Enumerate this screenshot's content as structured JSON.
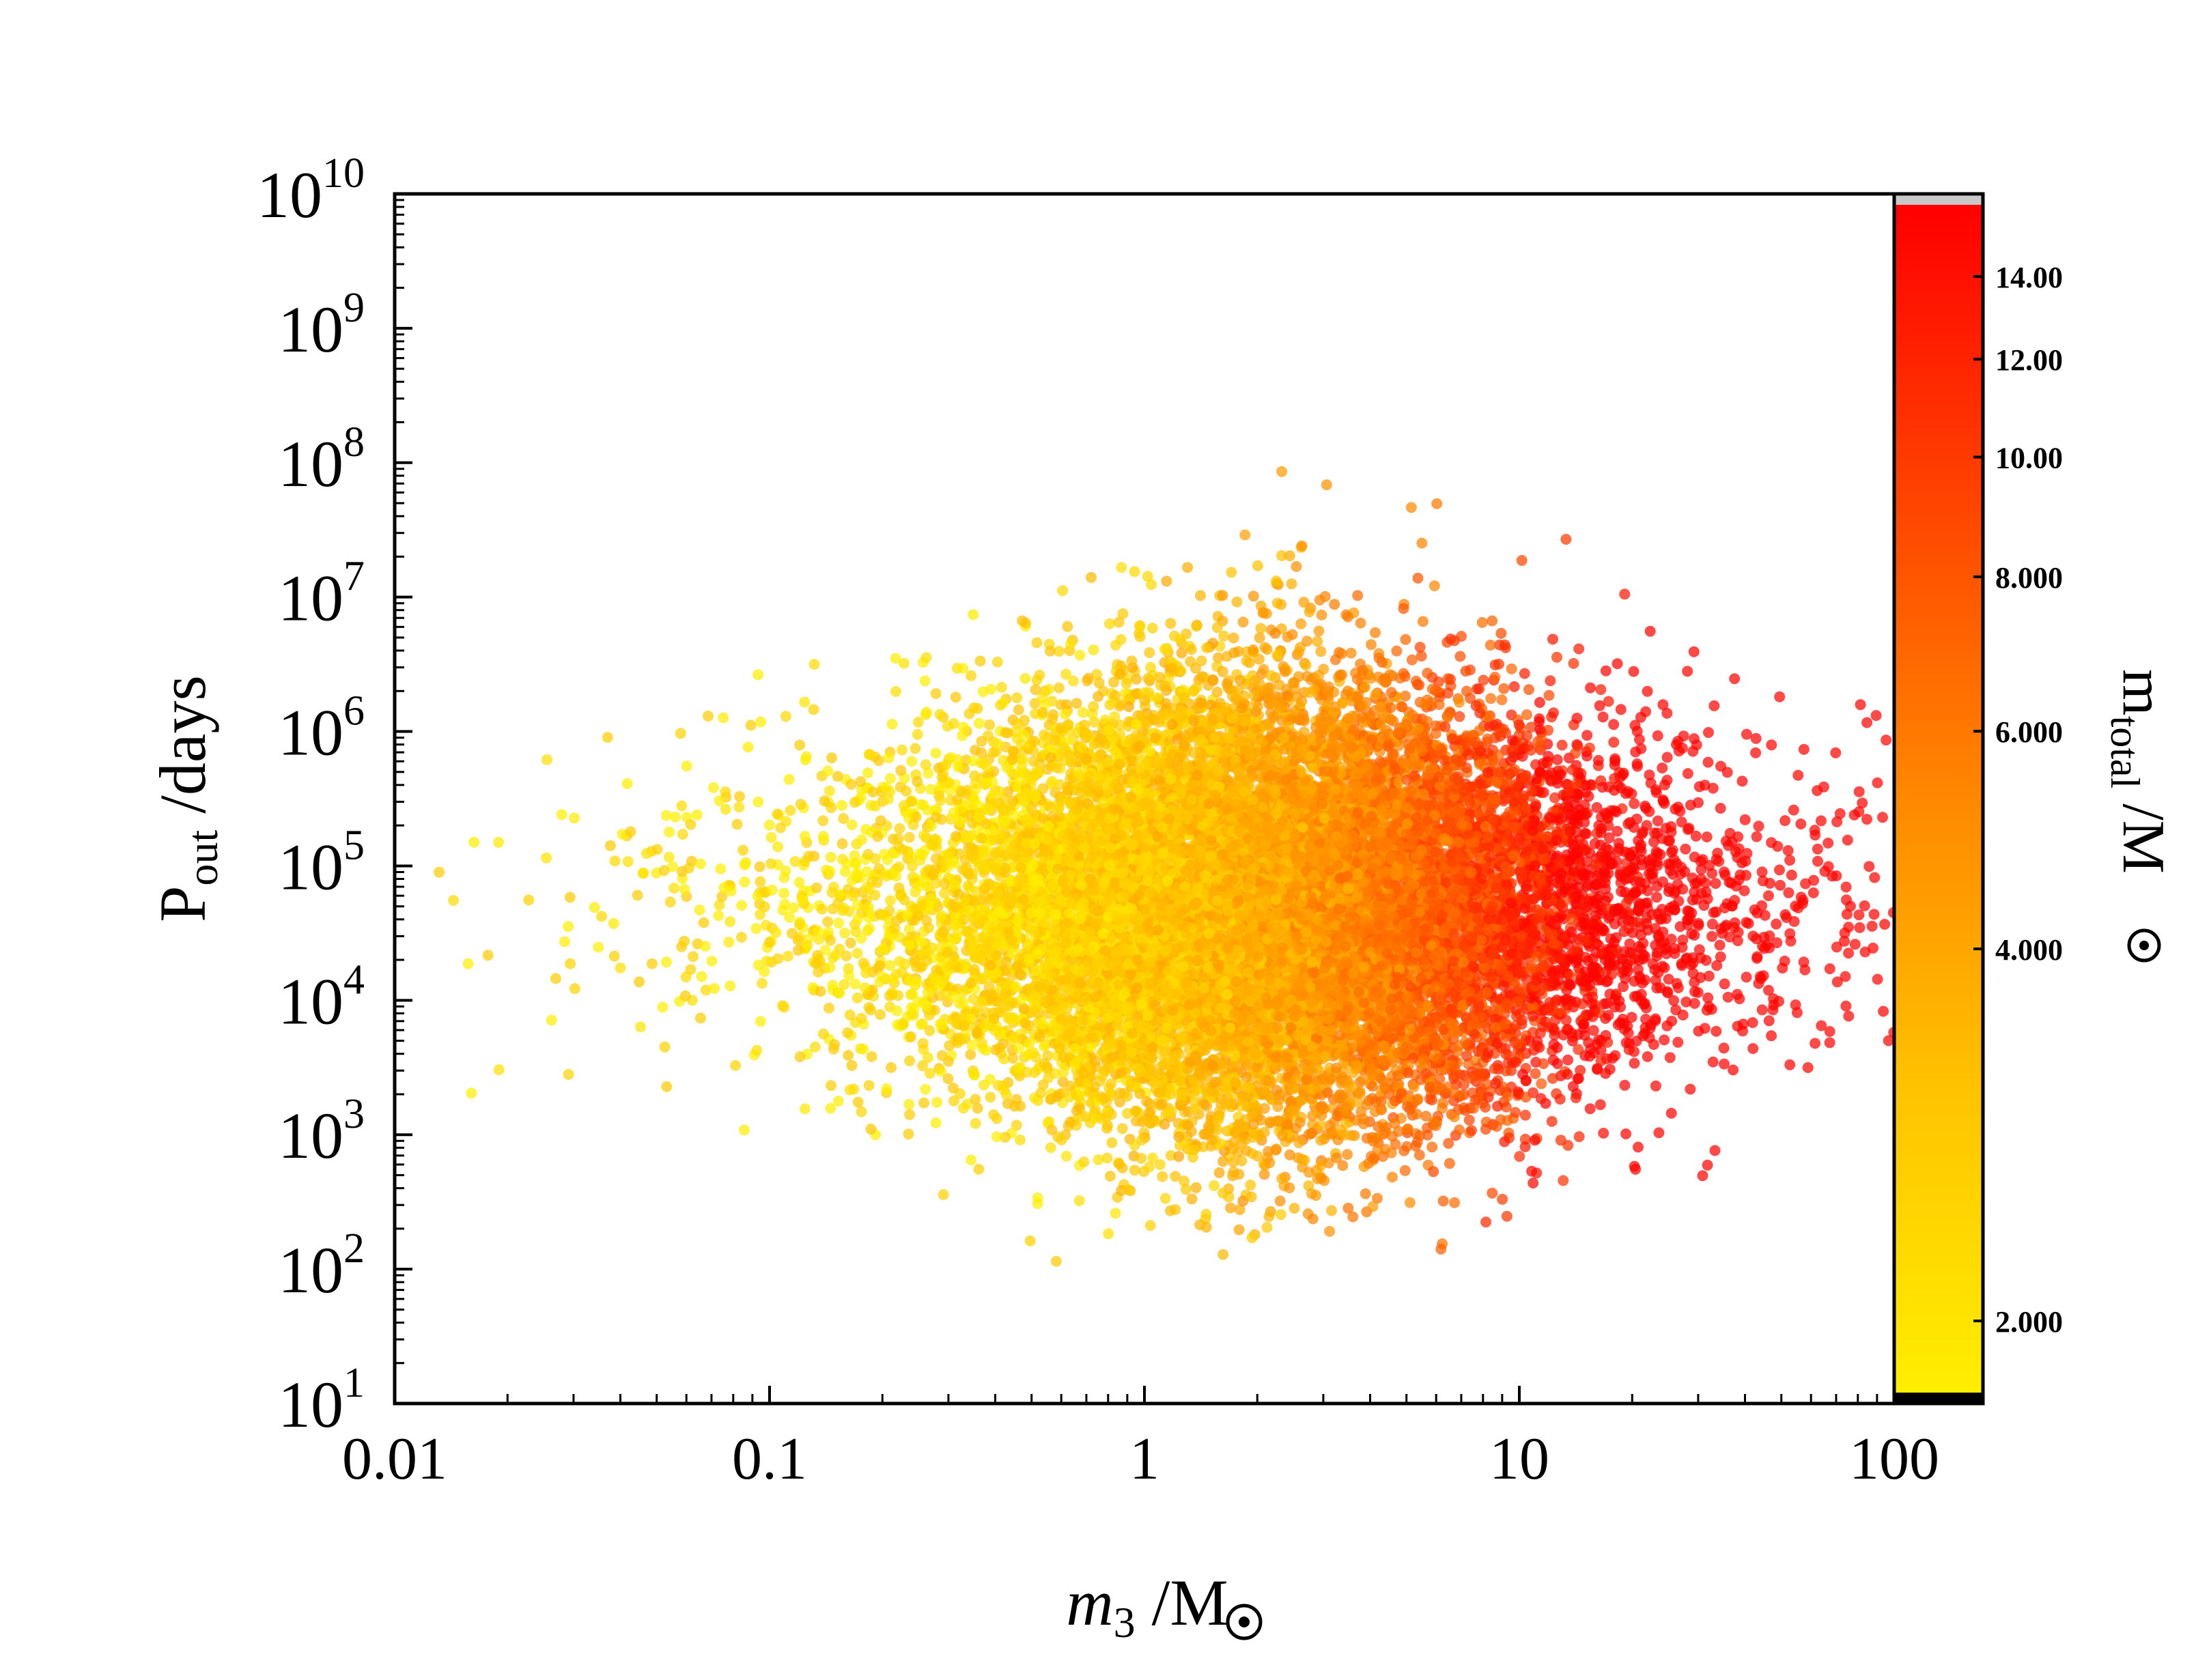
{
  "chart_data": {
    "type": "scatter",
    "title": "",
    "x_axis": {
      "label": "m",
      "label_sub": "3",
      "label_unit": " /M",
      "scale": "log",
      "range": [
        0.01,
        100
      ],
      "ticks": [
        {
          "value": 0.01,
          "label": "0.01"
        },
        {
          "value": 0.1,
          "label": "0.1"
        },
        {
          "value": 1,
          "label": "1"
        },
        {
          "value": 10,
          "label": "10"
        },
        {
          "value": 100,
          "label": "100"
        }
      ]
    },
    "y_axis": {
      "label": "P",
      "label_sub": "out",
      "label_unit": " /days",
      "scale": "log",
      "range": [
        10,
        10000000000
      ],
      "ticks": [
        {
          "value": 10,
          "base": "10",
          "exp": "1"
        },
        {
          "value": 100,
          "base": "10",
          "exp": "2"
        },
        {
          "value": 1000,
          "base": "10",
          "exp": "3"
        },
        {
          "value": 10000,
          "base": "10",
          "exp": "4"
        },
        {
          "value": 100000,
          "base": "10",
          "exp": "5"
        },
        {
          "value": 1000000,
          "base": "10",
          "exp": "6"
        },
        {
          "value": 10000000,
          "base": "10",
          "exp": "7"
        },
        {
          "value": 100000000,
          "base": "10",
          "exp": "8"
        },
        {
          "value": 1000000000,
          "base": "10",
          "exp": "9"
        },
        {
          "value": 10000000000,
          "base": "10",
          "exp": "10"
        }
      ]
    },
    "colorbar": {
      "label": "m",
      "label_sub": "total",
      "label_unit": " /M",
      "scale": "log",
      "range": [
        1.75,
        16
      ],
      "colors": [
        "#ffee00",
        "#ffc400",
        "#ff8800",
        "#ff4400",
        "#ff0000"
      ],
      "over_color": "#c8c8c8",
      "under_color": "#000000",
      "ticks": [
        {
          "value": 2,
          "label": "2.000"
        },
        {
          "value": 4,
          "label": "4.000"
        },
        {
          "value": 6,
          "label": "6.000"
        },
        {
          "value": 8,
          "label": "8.000"
        },
        {
          "value": 10,
          "label": "10.00"
        },
        {
          "value": 12,
          "label": "12.00"
        },
        {
          "value": 14,
          "label": "14.00"
        }
      ]
    },
    "point_density": {
      "x_log10_center": 0.35,
      "x_log10_spread": 0.45,
      "y_log10_center": 4.7,
      "y_log10_spread": 0.85,
      "y_min": 100,
      "y_max": 150000000,
      "color_by": "m_total ~ 1.2 + 0.9*m3"
    }
  }
}
